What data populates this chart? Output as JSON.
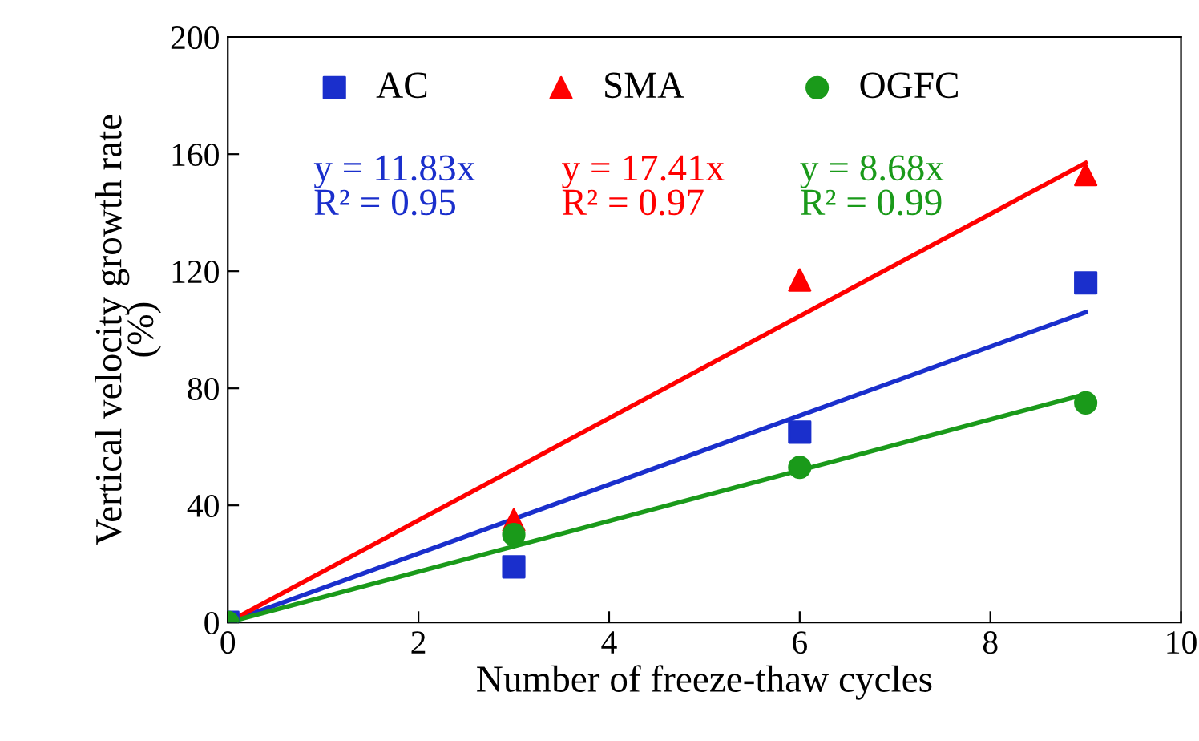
{
  "chart_data": {
    "type": "scatter",
    "xlabel": "Number of freeze-thaw cycles",
    "ylabel": "Vertical velocity growth rate\n(%)",
    "xlim": [
      0,
      10
    ],
    "xticks": [
      0,
      2,
      4,
      6,
      8,
      10
    ],
    "ylim": [
      0,
      200
    ],
    "yticks": [
      0,
      40,
      80,
      120,
      160,
      200
    ],
    "grid": false,
    "legend": "top",
    "series": [
      {
        "name": "AC",
        "color": "#1a2fcc",
        "marker": "square",
        "x": [
          0,
          3,
          6,
          9
        ],
        "values": [
          0,
          19,
          65,
          116
        ]
      },
      {
        "name": "SMA",
        "color": "#ff0000",
        "marker": "triangle",
        "x": [
          3,
          6,
          9
        ],
        "values": [
          35,
          117,
          153
        ]
      },
      {
        "name": "OGFC",
        "color": "#1a9a1a",
        "marker": "circle",
        "x": [
          0,
          3,
          6,
          9
        ],
        "values": [
          0,
          30,
          53,
          75
        ]
      },
      {
        "type": "line",
        "color": "#1a2fcc",
        "marker": "none",
        "x": [
          0,
          9
        ],
        "values": [
          0,
          106
        ]
      },
      {
        "type": "line",
        "color": "#ff0000",
        "marker": "none",
        "x": [
          0,
          9
        ],
        "values": [
          0,
          157
        ]
      },
      {
        "type": "line",
        "color": "#1a9a1a",
        "marker": "none",
        "x": [
          0,
          9
        ],
        "values": [
          0,
          78
        ]
      }
    ],
    "annotations": [
      "y = 11.83x\nR² = 0.95",
      "y = 17.41x\nR² = 0.97",
      "y = 8.68x\nR² = 0.99"
    ]
  }
}
